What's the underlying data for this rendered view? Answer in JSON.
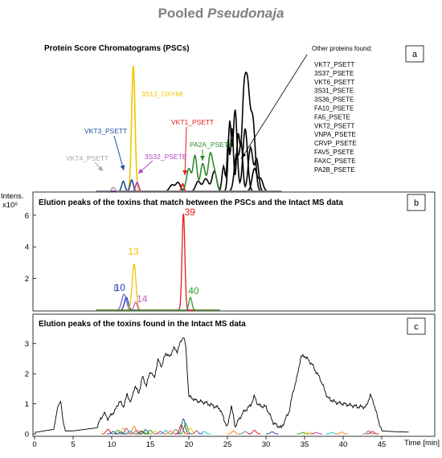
{
  "title_prefix": "Pooled ",
  "title_italic": "Pseudonaja",
  "chart_data": [
    {
      "type": "line",
      "panel": "a",
      "title": "Protein Score Chromatograms (PSCs)",
      "other_proteins_title": "Other proteins found:",
      "other_proteins": [
        "VKT7_PSETT",
        "3S37_PSETE",
        "VKT6_PSETT",
        "3S31_PSETE",
        "3S36_PSETE",
        "FA10_PSETE",
        "FA5_PSETE",
        "VKT2_PSETT",
        "VNPA_PSETE",
        "CRVP_PSETE",
        "FAV5_PSETE",
        "FAXC_PSETE",
        "PA2B_PSETE"
      ],
      "series": [
        {
          "name": "3S13_OXYMI",
          "color": "#f2c500",
          "peaks": [
            [
              12.8,
              1.0,
              0.22
            ]
          ]
        },
        {
          "name": "VKT1_PSETT",
          "color": "#e41a1c",
          "peaks": [
            [
              19.2,
              0.06,
              0.15
            ]
          ]
        },
        {
          "name": "PA2A_PSETE",
          "color": "#2e8b2e",
          "peaks": [
            [
              20.0,
              0.18,
              0.3
            ],
            [
              20.8,
              0.28,
              0.25
            ],
            [
              21.8,
              0.22,
              0.3
            ],
            [
              22.8,
              0.3,
              0.3
            ],
            [
              23.4,
              0.12,
              0.25
            ]
          ]
        },
        {
          "name": "VKT3_PSETT",
          "color": "#1f4e9e",
          "peaks": [
            [
              11.5,
              0.08,
              0.2
            ],
            [
              12.6,
              0.09,
              0.2
            ]
          ]
        },
        {
          "name": "3S32_PSETE",
          "color": "#b03fbf",
          "peaks": [
            [
              13.3,
              0.07,
              0.2
            ]
          ]
        },
        {
          "name": "VKT4_PSETT",
          "color": "#a6a6a6",
          "peaks": [
            [
              10.2,
              0.03,
              0.2
            ]
          ]
        }
      ],
      "other_color": "#000000"
    },
    {
      "type": "line",
      "panel": "b",
      "title": "Elution peaks of the toxins that match between the PSCs and the Intact MS data",
      "y_axis_label": "Intens.",
      "y_multiplier": "x10⁶",
      "ylim": [
        0,
        6.6
      ],
      "yticks": [
        2,
        4,
        6
      ],
      "series": [
        {
          "name": "8",
          "color": "#7f5fbf",
          "peaks": [
            [
              11.6,
              1.0,
              0.3
            ]
          ]
        },
        {
          "name": "10",
          "color": "#1f3fbf",
          "peaks": [
            [
              11.9,
              0.8,
              0.25
            ]
          ]
        },
        {
          "name": "13",
          "color": "#f2c500",
          "peaks": [
            [
              12.9,
              2.9,
              0.25
            ]
          ]
        },
        {
          "name": "14",
          "color": "#c060c0",
          "peaks": [
            [
              13.1,
              0.5,
              0.2
            ]
          ]
        },
        {
          "name": "39",
          "color": "#e41a1c",
          "peaks": [
            [
              19.3,
              6.1,
              0.18
            ]
          ]
        },
        {
          "name": "40",
          "color": "#2e9e2e",
          "peaks": [
            [
              20.2,
              0.8,
              0.2
            ]
          ]
        }
      ]
    },
    {
      "type": "line",
      "panel": "c",
      "title": "Elution peaks of the toxins found in the Intact MS data",
      "ylim": [
        0,
        3.5
      ],
      "yticks": [
        0,
        1,
        2,
        3
      ],
      "xlim": [
        0,
        50
      ],
      "xticks": [
        0,
        5,
        10,
        15,
        20,
        25,
        30,
        35,
        40,
        45
      ],
      "xlabel": "Time [min]",
      "tic": {
        "color": "#000000",
        "x": [
          0,
          2.5,
          3.0,
          3.4,
          3.7,
          4.0,
          5.0,
          8.0,
          9.0,
          9.5,
          10.0,
          10.5,
          11.0,
          11.5,
          12.0,
          12.5,
          13.0,
          13.5,
          14.0,
          14.5,
          15.0,
          15.5,
          16.0,
          16.5,
          17.0,
          17.5,
          18.0,
          18.5,
          19.0,
          19.3,
          19.6,
          20.0,
          21.0,
          22.0,
          23.0,
          24.0,
          25.0,
          25.5,
          26.0,
          27.0,
          28.0,
          28.5,
          29.0,
          30.0,
          31.0,
          32.0,
          33.0,
          33.5,
          34.0,
          34.5,
          35.0,
          35.5,
          36.0,
          36.5,
          37.0,
          38.0,
          39.0,
          40.0,
          41.0,
          42.0,
          43.0,
          43.5,
          44.0,
          44.4,
          45.0,
          47.0,
          48.5
        ],
        "y": [
          0.05,
          0.15,
          0.9,
          1.1,
          0.4,
          0.1,
          0.1,
          0.2,
          0.7,
          0.5,
          0.65,
          0.8,
          1.1,
          0.9,
          1.3,
          1.05,
          1.6,
          1.35,
          1.9,
          1.6,
          2.1,
          1.85,
          2.45,
          2.25,
          2.7,
          2.55,
          2.85,
          2.75,
          3.1,
          3.25,
          2.9,
          1.25,
          1.1,
          1.05,
          0.95,
          0.85,
          0.2,
          0.95,
          0.25,
          0.7,
          0.95,
          1.25,
          0.95,
          0.9,
          0.35,
          0.2,
          0.75,
          1.4,
          1.85,
          2.55,
          2.6,
          2.45,
          2.3,
          2.05,
          1.85,
          1.2,
          1.05,
          1.0,
          0.95,
          0.9,
          0.9,
          1.3,
          1.0,
          0.6,
          0.1,
          0.07,
          0.06
        ]
      },
      "deconvoluted_colors": [
        "#e41a1c",
        "#1f4e9e",
        "#2e9e2e",
        "#f2c500",
        "#b03fbf",
        "#17becf",
        "#ff7f0e",
        "#7f7f7f"
      ]
    }
  ]
}
